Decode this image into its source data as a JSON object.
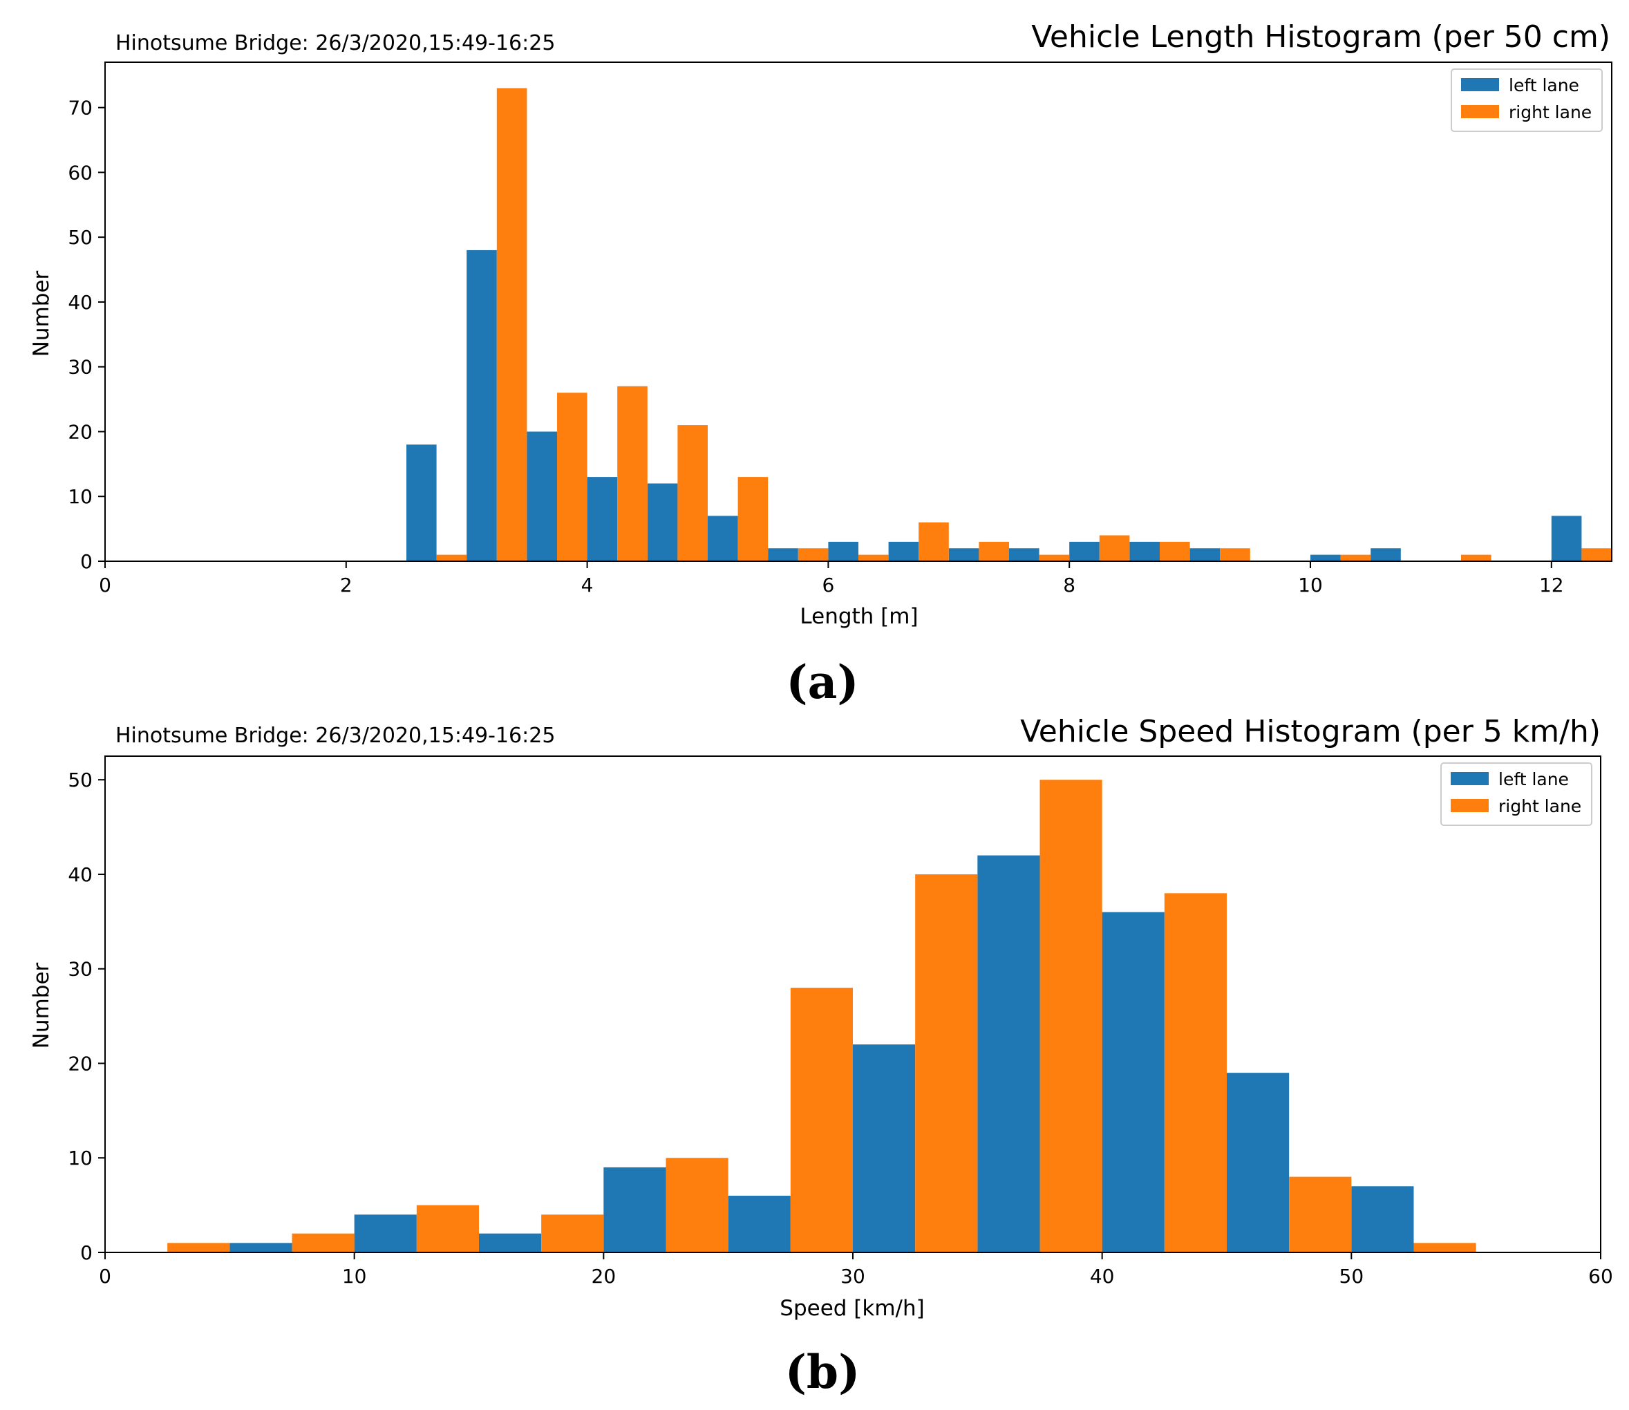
{
  "colors": {
    "left": "#1f77b4",
    "right": "#ff7f0e"
  },
  "chart_data": [
    {
      "type": "bar",
      "title": "Vehicle Length Histogram (per 50 cm)",
      "subtitle": "Hinotsume Bridge: 26/3/2020,15:49-16:25",
      "xlabel": "Length [m]",
      "ylabel": "Number",
      "panel_label": "(a)",
      "xlim": [
        0,
        12.5
      ],
      "ylim": [
        0,
        77
      ],
      "xticks": [
        0,
        2,
        4,
        6,
        8,
        10,
        12
      ],
      "yticks": [
        0,
        10,
        20,
        30,
        40,
        50,
        60,
        70
      ],
      "bin_width": 0.5,
      "legend": [
        "left lane",
        "right lane"
      ],
      "legend_position": "top-right",
      "bin_starts": [
        2.5,
        3.0,
        3.5,
        4.0,
        4.5,
        5.0,
        5.5,
        6.0,
        6.5,
        7.0,
        7.5,
        8.0,
        8.5,
        9.0,
        9.5,
        10.0,
        10.5,
        11.0,
        11.5,
        12.0
      ],
      "series": [
        {
          "name": "left lane",
          "values": [
            18,
            48,
            20,
            13,
            12,
            7,
            2,
            3,
            3,
            2,
            2,
            3,
            3,
            2,
            0,
            1,
            2,
            0,
            0,
            7
          ]
        },
        {
          "name": "right lane",
          "values": [
            1,
            73,
            26,
            27,
            21,
            13,
            2,
            1,
            6,
            3,
            1,
            4,
            3,
            2,
            0,
            1,
            0,
            1,
            0,
            2
          ]
        }
      ]
    },
    {
      "type": "bar",
      "title": "Vehicle Speed Histogram (per 5 km/h)",
      "subtitle": "Hinotsume Bridge: 26/3/2020,15:49-16:25",
      "xlabel": "Speed [km/h]",
      "ylabel": "Number",
      "panel_label": "(b)",
      "xlim": [
        0,
        60
      ],
      "ylim": [
        0,
        52.5
      ],
      "xticks": [
        0,
        10,
        20,
        30,
        40,
        50,
        60
      ],
      "yticks": [
        0,
        10,
        20,
        30,
        40,
        50
      ],
      "bin_width": 5,
      "legend": [
        "left lane",
        "right lane"
      ],
      "legend_position": "top-right",
      "bin_starts": [
        0,
        5,
        10,
        15,
        20,
        25,
        30,
        35,
        40,
        45,
        50
      ],
      "series": [
        {
          "name": "left lane",
          "values": [
            0,
            1,
            4,
            2,
            9,
            6,
            22,
            42,
            36,
            19,
            7
          ]
        },
        {
          "name": "right lane",
          "values": [
            1,
            2,
            5,
            4,
            10,
            28,
            40,
            50,
            38,
            8,
            1
          ]
        }
      ]
    }
  ]
}
